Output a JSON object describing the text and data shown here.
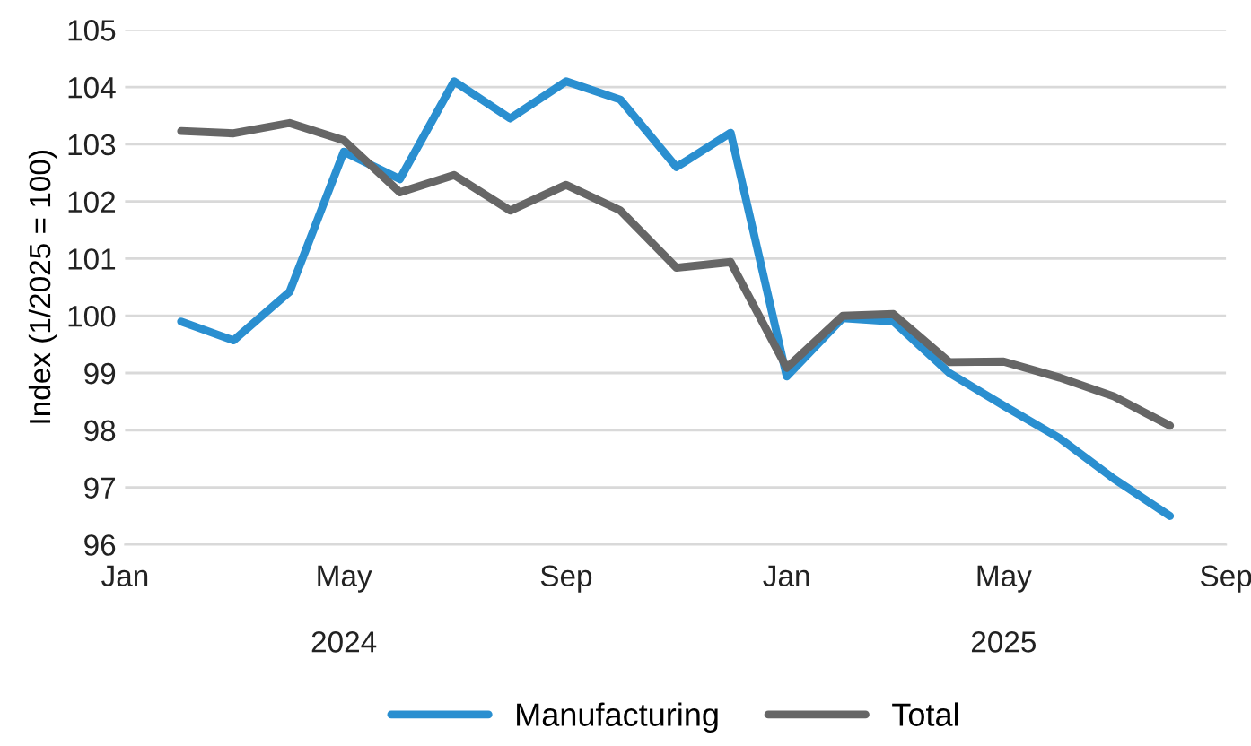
{
  "chart_data": {
    "type": "line",
    "ylabel": "Index (1/2025 = 100)",
    "x": [
      "2024-02",
      "2024-03",
      "2024-04",
      "2024-05",
      "2024-06",
      "2024-07",
      "2024-08",
      "2024-09",
      "2024-10",
      "2024-11",
      "2024-12",
      "2025-01",
      "2025-02",
      "2025-03",
      "2025-04",
      "2025-05",
      "2025-06",
      "2025-07",
      "2025-08"
    ],
    "series": [
      {
        "name": "Manufacturing",
        "color": "#2a8fd0",
        "values": [
          99.9,
          99.57,
          100.42,
          102.87,
          102.39,
          104.1,
          103.45,
          104.1,
          103.78,
          102.6,
          103.2,
          98.94,
          99.96,
          99.9,
          99.0,
          98.43,
          97.86,
          97.15,
          96.5
        ]
      },
      {
        "name": "Total",
        "color": "#666666",
        "values": [
          103.23,
          103.19,
          103.37,
          103.07,
          102.16,
          102.46,
          101.84,
          102.29,
          101.84,
          100.84,
          100.94,
          99.09,
          100.0,
          100.03,
          99.19,
          99.2,
          98.92,
          98.59,
          98.08
        ]
      }
    ],
    "xlim": [
      "2024-01",
      "2025-09"
    ],
    "xticks": [
      {
        "value": "2024-01",
        "label": "Jan"
      },
      {
        "value": "2024-05",
        "label": "May"
      },
      {
        "value": "2024-09",
        "label": "Sep"
      },
      {
        "value": "2025-01",
        "label": "Jan"
      },
      {
        "value": "2025-05",
        "label": "May"
      },
      {
        "value": "2025-09",
        "label": "Sep"
      }
    ],
    "x2lim": [
      "2024-01",
      "2025-09"
    ],
    "x2ticks": [
      {
        "value": "2024-05",
        "label": "2024"
      },
      {
        "value": "2025-05",
        "label": "2025"
      }
    ],
    "ylim": [
      96,
      105
    ],
    "yticks": [
      96,
      97,
      98,
      99,
      100,
      101,
      102,
      103,
      104,
      105
    ],
    "grid": "y",
    "legend": "bottom",
    "marker": "none",
    "line_style": "solid"
  }
}
